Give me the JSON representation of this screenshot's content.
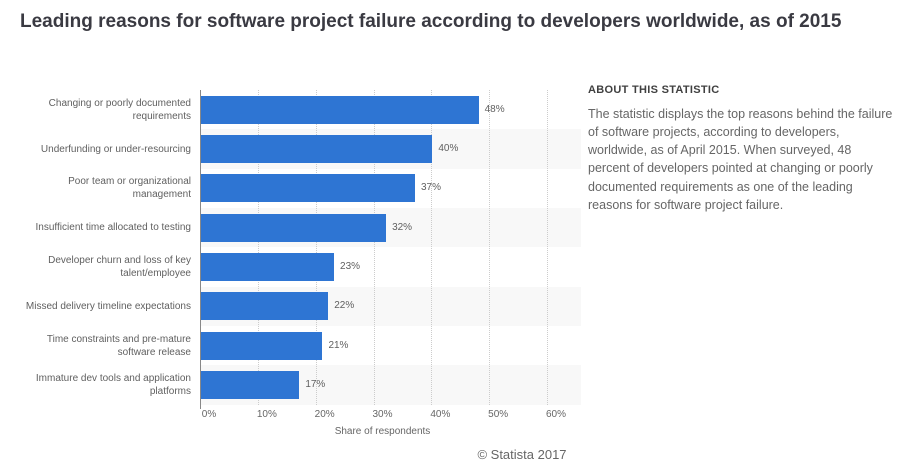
{
  "title": "Leading reasons for software project failure according to developers worldwide, as of 2015",
  "chart_data": {
    "type": "bar",
    "orientation": "horizontal",
    "title": "Leading reasons for software project failure according to developers worldwide, as of 2015",
    "categories": [
      "Changing or poorly documented requirements",
      "Underfunding or under-resourcing",
      "Poor team or organizational management",
      "Insufficient time allocated to testing",
      "Developer churn and loss of key talent/employee",
      "Missed delivery timeline expectations",
      "Time constraints and pre-mature software release",
      "Immature dev tools and application platforms"
    ],
    "values": [
      48,
      40,
      37,
      32,
      23,
      22,
      21,
      17
    ],
    "value_labels": [
      "48%",
      "40%",
      "37%",
      "32%",
      "23%",
      "22%",
      "21%",
      "17%"
    ],
    "xlabel": "Share of respondents",
    "ylabel": "",
    "xlim": [
      0,
      60
    ],
    "x_ticks": [
      "0%",
      "10%",
      "20%",
      "30%",
      "40%",
      "50%",
      "60%"
    ],
    "grid": "vertical-dotted",
    "legend": "none",
    "colors": {
      "bar": "#2e75d3",
      "row_stripe": "#f8f8f8",
      "gridline": "#cccccc",
      "axis_line": "#888888",
      "label_text": "#606060"
    }
  },
  "about": {
    "heading": "ABOUT THIS STATISTIC",
    "body": "The statistic displays the top reasons behind the failure of software projects, according to developers, worldwide, as of April 2015. When surveyed, 48 percent of developers pointed at changing or poorly documented requirements as one of the leading reasons for software project failure."
  },
  "footer": {
    "copyright": "© Statista 2017"
  }
}
